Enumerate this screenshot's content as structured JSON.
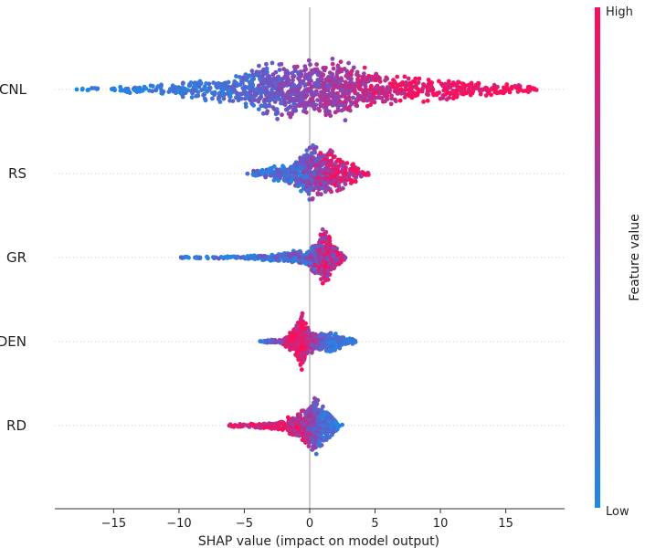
{
  "chart_data": {
    "type": "scatter",
    "subtype": "shap-beeswarm",
    "xlabel": "SHAP value (impact on model output)",
    "xlim": [
      -19.5,
      19.5
    ],
    "xticks": [
      -15,
      -10,
      -5,
      0,
      5,
      10,
      15
    ],
    "xtick_labels": [
      "−15",
      "−10",
      "−5",
      "0",
      "5",
      "10",
      "15"
    ],
    "zero_line": 0,
    "row_gridlines": "dotted",
    "colorbar": {
      "label": "Feature value",
      "high_label": "High",
      "low_label": "Low",
      "low_color": "#1e88e5",
      "high_color": "#ff0d57"
    },
    "features": [
      {
        "name": "CNL",
        "min": -18,
        "max": 17.5,
        "profile": [
          [
            -18,
            0.04
          ],
          [
            -12,
            0.15
          ],
          [
            -6,
            0.42
          ],
          [
            -3,
            0.95
          ],
          [
            0,
            0.9
          ],
          [
            2.5,
            1.0
          ],
          [
            5,
            0.55
          ],
          [
            10,
            0.35
          ],
          [
            15,
            0.22
          ],
          [
            17.5,
            0.05
          ]
        ],
        "color_trend": [
          [
            -18,
            0.05
          ],
          [
            -6,
            0.2
          ],
          [
            -2,
            0.45
          ],
          [
            3,
            0.7
          ],
          [
            8,
            0.92
          ],
          [
            17.5,
            1.0
          ]
        ],
        "color_noise": 0.18,
        "count": 1300
      },
      {
        "name": "RS",
        "min": -5,
        "max": 4.5,
        "profile": [
          [
            -5,
            0.05
          ],
          [
            -3,
            0.2
          ],
          [
            -1,
            0.45
          ],
          [
            0,
            1.0
          ],
          [
            0.6,
            0.95
          ],
          [
            1.5,
            0.75
          ],
          [
            3,
            0.35
          ],
          [
            4.5,
            0.05
          ]
        ],
        "color_trend": [
          [
            -5,
            0.15
          ],
          [
            -1,
            0.2
          ],
          [
            0,
            0.45
          ],
          [
            1.5,
            0.75
          ],
          [
            4.5,
            0.95
          ]
        ],
        "color_noise": 0.3,
        "count": 650
      },
      {
        "name": "GR",
        "min": -10.5,
        "max": 2.8,
        "profile": [
          [
            -10.5,
            0.02
          ],
          [
            -5,
            0.06
          ],
          [
            -2,
            0.15
          ],
          [
            0,
            0.3
          ],
          [
            0.8,
            0.8
          ],
          [
            1.2,
            1.0
          ],
          [
            1.8,
            0.45
          ],
          [
            2.8,
            0.03
          ]
        ],
        "color_trend": [
          [
            -10.5,
            0.08
          ],
          [
            -3,
            0.2
          ],
          [
            0,
            0.35
          ],
          [
            1,
            0.75
          ],
          [
            2.8,
            0.85
          ]
        ],
        "color_noise": 0.35,
        "count": 650
      },
      {
        "name": "DEN",
        "min": -3.8,
        "max": 3.6,
        "profile": [
          [
            -3.8,
            0.03
          ],
          [
            -2,
            0.1
          ],
          [
            -1,
            0.55
          ],
          [
            -0.6,
            1.0
          ],
          [
            -0.2,
            0.45
          ],
          [
            0.5,
            0.3
          ],
          [
            1.5,
            0.35
          ],
          [
            2.5,
            0.2
          ],
          [
            3.6,
            0.03
          ]
        ],
        "color_trend": [
          [
            -3.8,
            0.1
          ],
          [
            -1.5,
            0.9
          ],
          [
            -0.5,
            0.95
          ],
          [
            0.3,
            0.55
          ],
          [
            1.5,
            0.2
          ],
          [
            3.6,
            0.1
          ]
        ],
        "color_noise": 0.2,
        "count": 650
      },
      {
        "name": "RD",
        "min": -6.2,
        "max": 2.5,
        "profile": [
          [
            -6.2,
            0.04
          ],
          [
            -4,
            0.08
          ],
          [
            -2,
            0.18
          ],
          [
            -0.5,
            0.5
          ],
          [
            0,
            0.8
          ],
          [
            0.5,
            1.0
          ],
          [
            1,
            0.65
          ],
          [
            2,
            0.2
          ],
          [
            2.5,
            0.03
          ]
        ],
        "color_trend": [
          [
            -6.2,
            0.97
          ],
          [
            -2,
            0.92
          ],
          [
            -0.5,
            0.75
          ],
          [
            0.3,
            0.45
          ],
          [
            1,
            0.25
          ],
          [
            2.5,
            0.1
          ]
        ],
        "color_noise": 0.25,
        "count": 650
      }
    ]
  }
}
